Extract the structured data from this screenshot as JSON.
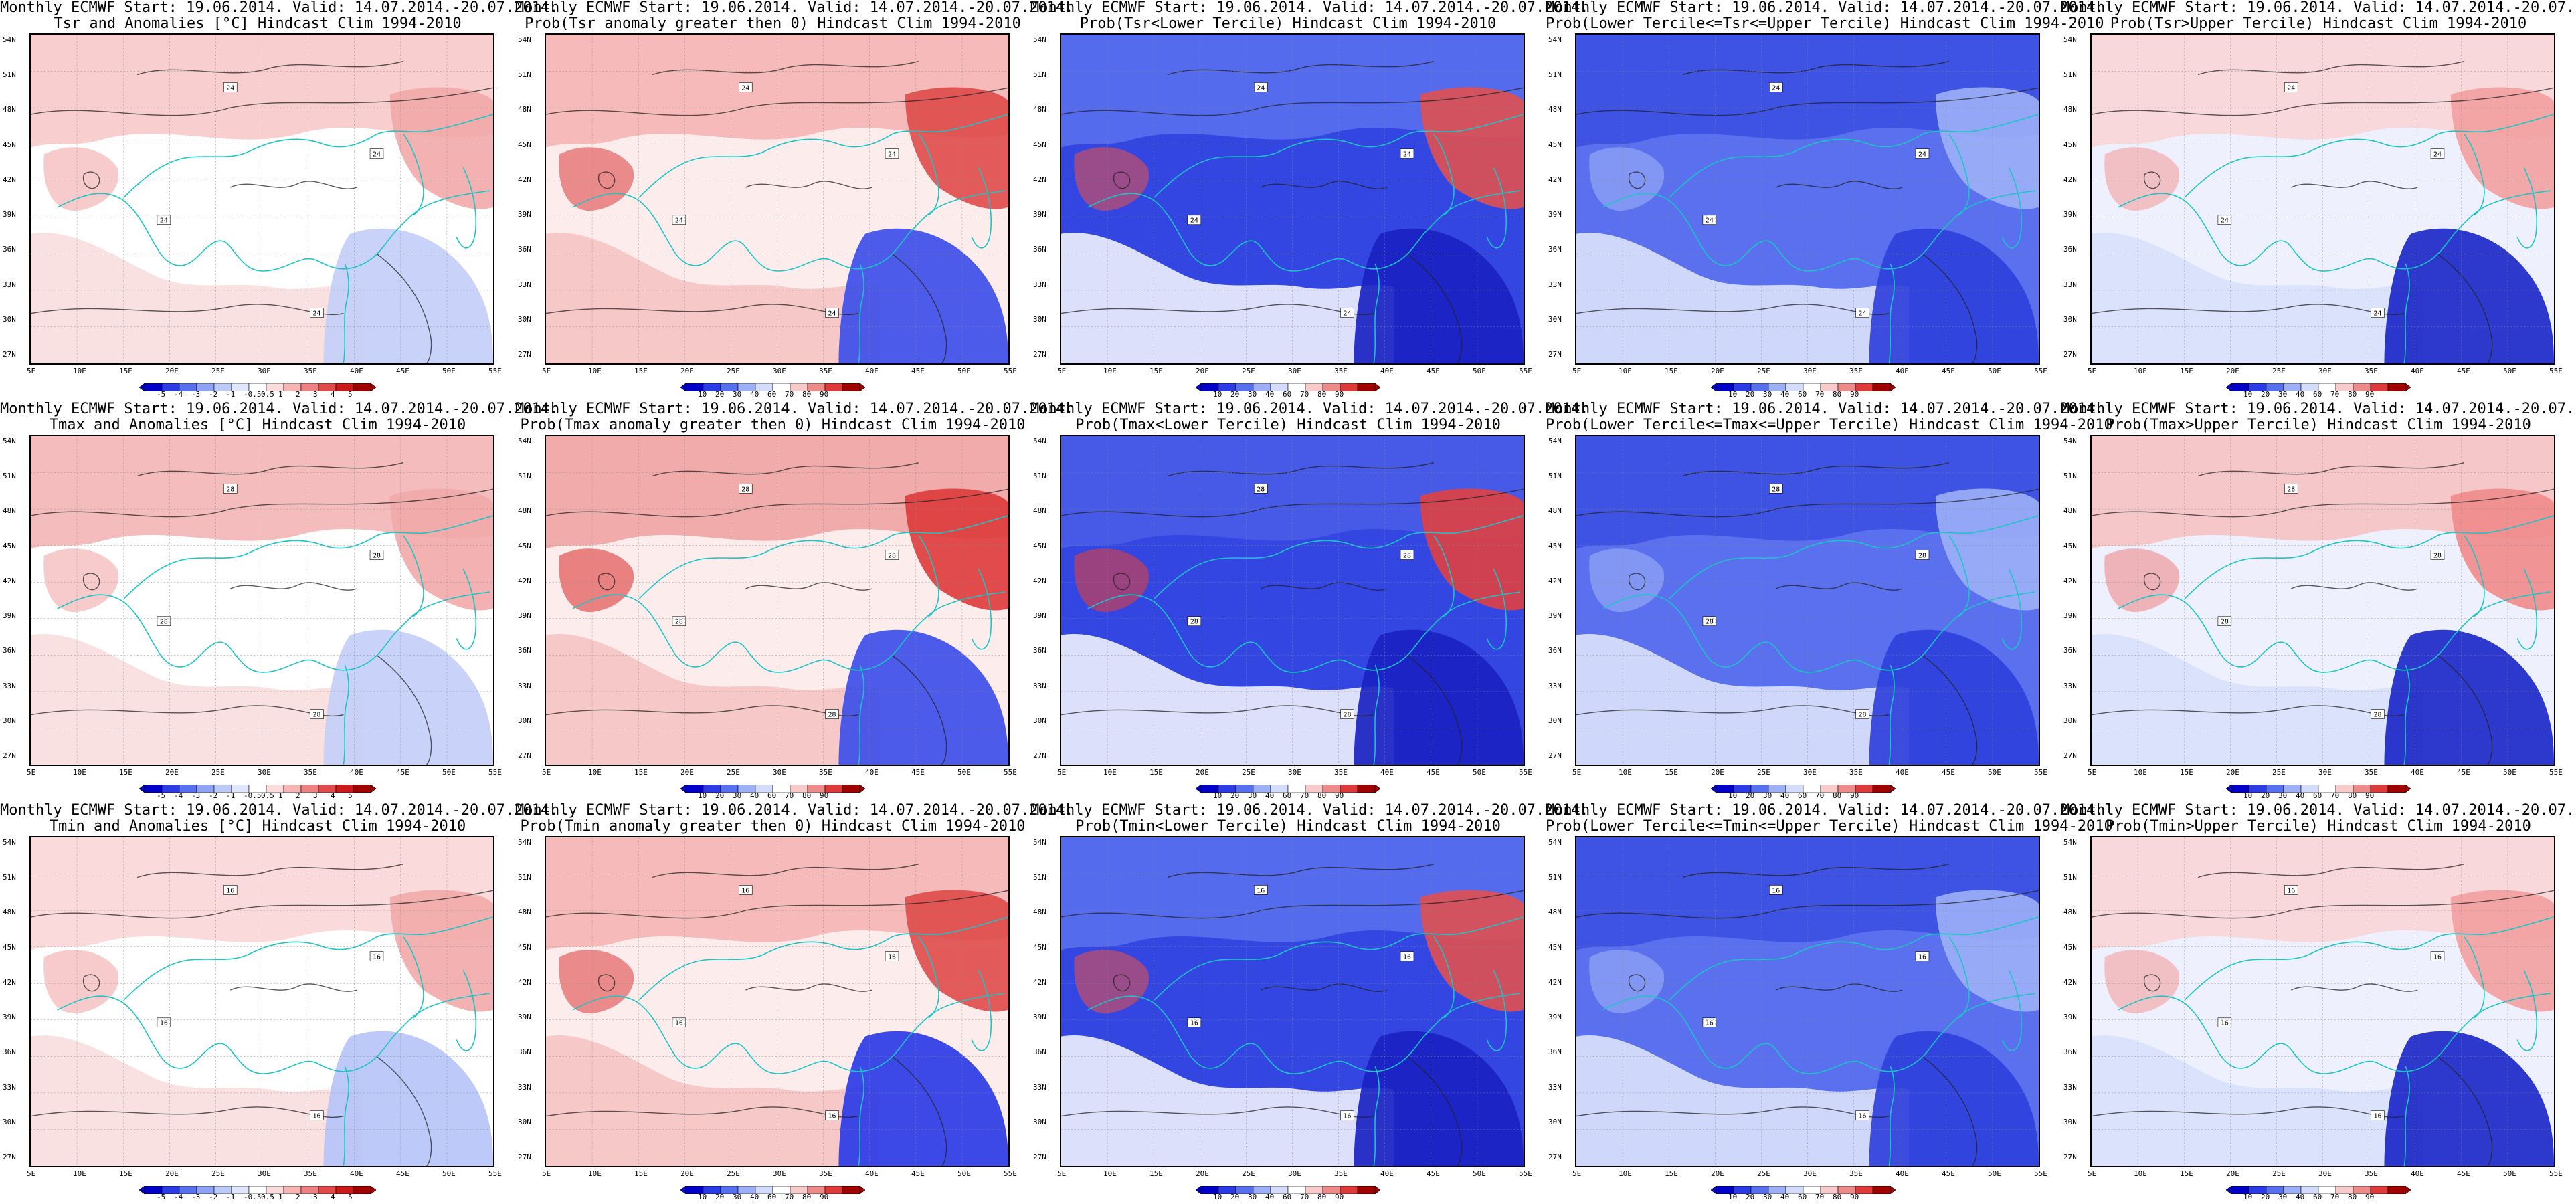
{
  "header_line": "Monthly ECMWF Start: 19.06.2014. Valid: 14.07.2014.-20.07.2014.",
  "lat_labels": [
    "54N",
    "51N",
    "48N",
    "45N",
    "42N",
    "39N",
    "36N",
    "33N",
    "30N",
    "27N"
  ],
  "lon_labels": [
    "5E",
    "10E",
    "15E",
    "20E",
    "25E",
    "30E",
    "35E",
    "40E",
    "45E",
    "50E",
    "55E"
  ],
  "scales": {
    "anom": {
      "labels": [
        "-5",
        "-4",
        "-3",
        "-2",
        "-1",
        "-0.5",
        "0.5",
        "1",
        "2",
        "3",
        "4",
        "5"
      ],
      "colors": [
        "#0000c8",
        "#2b3be6",
        "#5670f0",
        "#8ea2f6",
        "#bccaf9",
        "#e0e6fc",
        "#ffffff",
        "#fbdcdc",
        "#f6b4b4",
        "#ee8282",
        "#e04a4a",
        "#cc1a1a",
        "#a00000"
      ]
    },
    "prob": {
      "labels": [
        "10",
        "20",
        "30",
        "40",
        "60",
        "70",
        "80",
        "90"
      ],
      "colors": [
        "#0000c8",
        "#2b3be6",
        "#5670f0",
        "#9db0f7",
        "#d4dcfb",
        "#ffffff",
        "#f9caca",
        "#ef8a8a",
        "#de3a3a",
        "#a00000"
      ]
    }
  },
  "panels": [
    {
      "title": "Tsr and Anomalies [°C] Hindcast Clim 1994-2010",
      "scale": "anom",
      "map": {
        "base": "#ffffff",
        "cool_zone": "#c4cff8",
        "warm_zone": "#f2a8a8",
        "north_band": "#f7c6c6",
        "land": "#f9dede",
        "contour_label": "24"
      }
    },
    {
      "title": "Prob(Tsr anomaly greater then 0) Hindcast Clim 1994-2010",
      "scale": "prob",
      "map": {
        "base": "#fdecec",
        "cool_zone": "#3d4ee8",
        "warm_zone": "#e04a4a",
        "north_band": "#f4b2b2",
        "land": "#f6c4c4",
        "contour_label": "24"
      }
    },
    {
      "title": "Prob(Tsr<Lower Tercile) Hindcast Clim 1994-2010",
      "scale": "prob",
      "map": {
        "base": "#3346e2",
        "cool_zone": "#1a22c2",
        "warm_zone": "#e05050",
        "north_band": "#5b72ee",
        "land": "#eef1fd",
        "contour_label": "24"
      }
    },
    {
      "title": "Prob(Lower Tercile<=Tsr<=Upper Tercile) Hindcast Clim 1994-2010",
      "scale": "prob",
      "map": {
        "base": "#5a70ee",
        "cool_zone": "#2f40dc",
        "warm_zone": "#9db0f7",
        "north_band": "#3a4ee0",
        "land": "#dbe2fc",
        "contour_label": "24"
      }
    },
    {
      "title": "Prob(Tsr>Upper Tercile) Hindcast Clim 1994-2010",
      "scale": "prob",
      "map": {
        "base": "#eef1fd",
        "cool_zone": "#1c28c8",
        "warm_zone": "#f2a0a0",
        "north_band": "#f9d4d4",
        "land": "#d8e0fc",
        "contour_label": "24"
      }
    },
    {
      "title": "Tmax and Anomalies [°C] Hindcast Clim 1994-2010",
      "scale": "anom",
      "map": {
        "base": "#ffffff",
        "cool_zone": "#c4cff8",
        "warm_zone": "#f2a8a8",
        "north_band": "#f2b0b0",
        "land": "#f9dede",
        "contour_label": "28"
      }
    },
    {
      "title": "Prob(Tmax anomaly greater then 0) Hindcast Clim 1994-2010",
      "scale": "prob",
      "map": {
        "base": "#fdecec",
        "cool_zone": "#3d4ee8",
        "warm_zone": "#de3a3a",
        "north_band": "#f0a0a0",
        "land": "#f6c4c4",
        "contour_label": "28"
      }
    },
    {
      "title": "Prob(Tmax<Lower Tercile) Hindcast Clim 1994-2010",
      "scale": "prob",
      "map": {
        "base": "#3346e2",
        "cool_zone": "#1a22c2",
        "warm_zone": "#e04040",
        "north_band": "#4a5ee8",
        "land": "#eef1fd",
        "contour_label": "28"
      }
    },
    {
      "title": "Prob(Lower Tercile<=Tmax<=Upper Tercile) Hindcast Clim 1994-2010",
      "scale": "prob",
      "map": {
        "base": "#5a70ee",
        "cool_zone": "#2f40dc",
        "warm_zone": "#9db0f7",
        "north_band": "#3a4ee0",
        "land": "#dbe2fc",
        "contour_label": "28"
      }
    },
    {
      "title": "Prob(Tmax>Upper Tercile) Hindcast Clim 1994-2010",
      "scale": "prob",
      "map": {
        "base": "#eef1fd",
        "cool_zone": "#1c28c8",
        "warm_zone": "#ef8a8a",
        "north_band": "#f6c0c0",
        "land": "#d8e0fc",
        "contour_label": "28"
      }
    },
    {
      "title": "Tmin and Anomalies [°C] Hindcast Clim 1994-2010",
      "scale": "anom",
      "map": {
        "base": "#ffffff",
        "cool_zone": "#b6c4f8",
        "warm_zone": "#f2a8a8",
        "north_band": "#f9d4d4",
        "land": "#f9dede",
        "contour_label": "16"
      }
    },
    {
      "title": "Prob(Tmin anomaly greater then 0) Hindcast Clim 1994-2010",
      "scale": "prob",
      "map": {
        "base": "#fdecec",
        "cool_zone": "#2b3be6",
        "warm_zone": "#e04a4a",
        "north_band": "#f4b2b2",
        "land": "#f6c4c4",
        "contour_label": "16"
      }
    },
    {
      "title": "Prob(Tmin<Lower Tercile) Hindcast Clim 1994-2010",
      "scale": "prob",
      "map": {
        "base": "#3346e2",
        "cool_zone": "#1a22c2",
        "warm_zone": "#e05050",
        "north_band": "#5b72ee",
        "land": "#eef1fd",
        "contour_label": "16"
      }
    },
    {
      "title": "Prob(Lower Tercile<=Tmin<=Upper Tercile) Hindcast Clim 1994-2010",
      "scale": "prob",
      "map": {
        "base": "#5a70ee",
        "cool_zone": "#2f40dc",
        "warm_zone": "#9db0f7",
        "north_band": "#3a4ee0",
        "land": "#dbe2fc",
        "contour_label": "16"
      }
    },
    {
      "title": "Prob(Tmin>Upper Tercile) Hindcast Clim 1994-2010",
      "scale": "prob",
      "map": {
        "base": "#eef1fd",
        "cool_zone": "#1c28c8",
        "warm_zone": "#f2a0a0",
        "north_band": "#f9d4d4",
        "land": "#d8e0fc",
        "contour_label": "16"
      }
    }
  ]
}
